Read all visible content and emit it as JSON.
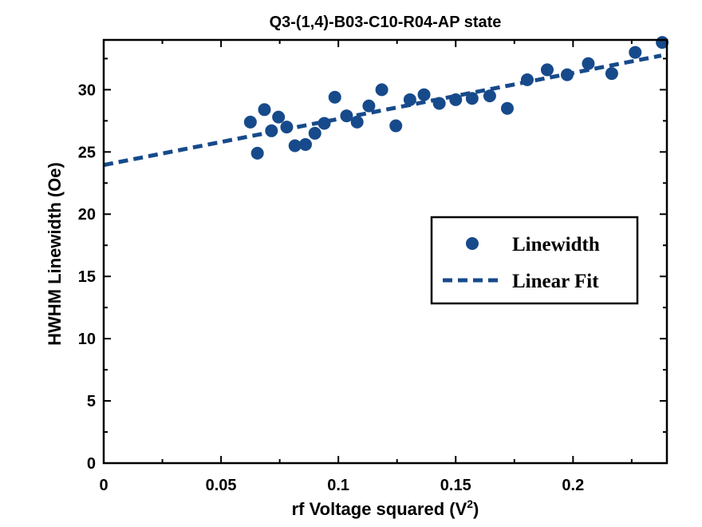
{
  "chart_data": {
    "type": "scatter",
    "title": "Q3-(1,4)-B03-C10-R04-AP state",
    "xlabel_main": "rf Voltage squared (V",
    "xlabel_sup": "2",
    "xlabel_end": ")",
    "ylabel": "HWHM Linewidth (Oe)",
    "xlim": [
      0,
      0.24
    ],
    "ylim": [
      0,
      34
    ],
    "xticks": [
      0,
      0.05,
      0.1,
      0.15,
      0.2
    ],
    "xtick_labels": [
      "0",
      "0.05",
      "0.1",
      "0.15",
      "0.2"
    ],
    "xminor_ticks": [
      0.025,
      0.075,
      0.125,
      0.175,
      0.225
    ],
    "yticks": [
      0,
      5,
      10,
      15,
      20,
      25,
      30
    ],
    "ytick_labels": [
      "0",
      "5",
      "10",
      "15",
      "20",
      "25",
      "30"
    ],
    "yminor_ticks": [
      2.5,
      7.5,
      12.5,
      17.5,
      22.5,
      27.5,
      32.5
    ],
    "grid": false,
    "legend_position": "center-right",
    "series": [
      {
        "name": "Linewidth",
        "kind": "scatter",
        "color": "#174a8b",
        "points": [
          [
            0.0625,
            27.4
          ],
          [
            0.0655,
            24.9
          ],
          [
            0.0685,
            28.4
          ],
          [
            0.0715,
            26.7
          ],
          [
            0.0745,
            27.8
          ],
          [
            0.078,
            27.0
          ],
          [
            0.0815,
            25.5
          ],
          [
            0.086,
            25.6
          ],
          [
            0.09,
            26.5
          ],
          [
            0.094,
            27.3
          ],
          [
            0.0985,
            29.4
          ],
          [
            0.1035,
            27.9
          ],
          [
            0.108,
            27.4
          ],
          [
            0.113,
            28.7
          ],
          [
            0.1185,
            30.0
          ],
          [
            0.1245,
            27.1
          ],
          [
            0.1305,
            29.2
          ],
          [
            0.1365,
            29.6
          ],
          [
            0.143,
            28.9
          ],
          [
            0.15,
            29.2
          ],
          [
            0.157,
            29.3
          ],
          [
            0.1645,
            29.5
          ],
          [
            0.172,
            28.5
          ],
          [
            0.1805,
            30.8
          ],
          [
            0.189,
            31.6
          ],
          [
            0.1975,
            31.2
          ],
          [
            0.2065,
            32.1
          ],
          [
            0.2165,
            31.3
          ],
          [
            0.2265,
            33.0
          ],
          [
            0.238,
            33.8
          ]
        ]
      },
      {
        "name": "Linear Fit",
        "kind": "line",
        "style": "dashed",
        "color": "#174a8b",
        "intercept": 23.95,
        "slope": 37.0
      }
    ]
  }
}
